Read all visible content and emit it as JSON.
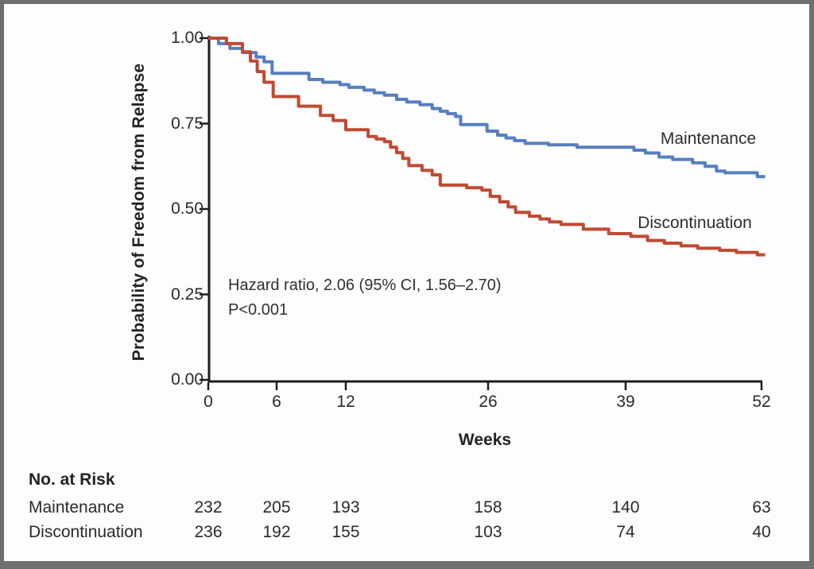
{
  "figure": {
    "frame_color": "#6f6f6f",
    "background": "#fdfdfd",
    "axis_color": "#1c1c1c",
    "text_color": "#2a2a2a"
  },
  "chart_data": {
    "type": "line",
    "subtype": "kaplan-meier-step",
    "title": "",
    "xlabel": "Weeks",
    "ylabel": "Probability of Freedom from Relapse",
    "xlim": [
      0,
      52
    ],
    "ylim": [
      0.0,
      1.0
    ],
    "grid": false,
    "legend_position": "inline-right",
    "x_ticks": [
      0,
      6,
      12,
      26,
      39,
      52
    ],
    "y_ticks": [
      "1.00",
      "0.75",
      "0.50",
      "0.25",
      "0.00"
    ],
    "y_tick_values": [
      1.0,
      0.75,
      0.5,
      0.25,
      0.0
    ],
    "annotation": {
      "line1": "Hazard ratio, 2.06 (95% CI, 1.56–2.70)",
      "line2": "P<0.001"
    },
    "series": [
      {
        "name": "Maintenance",
        "color": "#567fbe",
        "steps": [
          [
            0,
            1.0
          ],
          [
            0.9,
            0.984
          ],
          [
            1.9,
            0.97
          ],
          [
            3.0,
            0.958
          ],
          [
            4.2,
            0.945
          ],
          [
            4.9,
            0.931
          ],
          [
            5.6,
            0.897
          ],
          [
            8.8,
            0.879
          ],
          [
            10.0,
            0.871
          ],
          [
            11.5,
            0.864
          ],
          [
            12.3,
            0.856
          ],
          [
            13.8,
            0.848
          ],
          [
            14.8,
            0.84
          ],
          [
            15.8,
            0.833
          ],
          [
            17.0,
            0.821
          ],
          [
            18.0,
            0.813
          ],
          [
            19.3,
            0.805
          ],
          [
            20.5,
            0.794
          ],
          [
            21.3,
            0.786
          ],
          [
            22.0,
            0.779
          ],
          [
            22.8,
            0.771
          ],
          [
            23.3,
            0.747
          ],
          [
            25.9,
            0.728
          ],
          [
            26.9,
            0.716
          ],
          [
            27.7,
            0.708
          ],
          [
            28.5,
            0.7
          ],
          [
            29.5,
            0.692
          ],
          [
            31.7,
            0.688
          ],
          [
            34.4,
            0.681
          ],
          [
            39.8,
            0.672
          ],
          [
            40.9,
            0.664
          ],
          [
            42.2,
            0.652
          ],
          [
            43.5,
            0.645
          ],
          [
            45.4,
            0.635
          ],
          [
            46.6,
            0.625
          ],
          [
            47.7,
            0.611
          ],
          [
            48.5,
            0.606
          ],
          [
            51.6,
            0.595
          ]
        ]
      },
      {
        "name": "Discontinuation",
        "color": "#bf4a33",
        "steps": [
          [
            0,
            1.0
          ],
          [
            1.6,
            0.984
          ],
          [
            3.0,
            0.96
          ],
          [
            3.7,
            0.933
          ],
          [
            4.3,
            0.902
          ],
          [
            4.9,
            0.871
          ],
          [
            5.7,
            0.829
          ],
          [
            7.9,
            0.801
          ],
          [
            9.8,
            0.774
          ],
          [
            10.9,
            0.759
          ],
          [
            12.0,
            0.732
          ],
          [
            14.2,
            0.712
          ],
          [
            15.0,
            0.705
          ],
          [
            15.8,
            0.697
          ],
          [
            16.4,
            0.681
          ],
          [
            17.0,
            0.665
          ],
          [
            17.6,
            0.648
          ],
          [
            18.2,
            0.627
          ],
          [
            19.5,
            0.613
          ],
          [
            20.5,
            0.6
          ],
          [
            21.3,
            0.57
          ],
          [
            23.9,
            0.562
          ],
          [
            25.4,
            0.555
          ],
          [
            26.2,
            0.537
          ],
          [
            27.1,
            0.521
          ],
          [
            27.9,
            0.506
          ],
          [
            28.6,
            0.49
          ],
          [
            29.9,
            0.479
          ],
          [
            30.9,
            0.471
          ],
          [
            31.8,
            0.462
          ],
          [
            32.9,
            0.455
          ],
          [
            35.0,
            0.441
          ],
          [
            37.4,
            0.428
          ],
          [
            39.5,
            0.42
          ],
          [
            41.1,
            0.408
          ],
          [
            42.7,
            0.4
          ],
          [
            44.3,
            0.392
          ],
          [
            45.9,
            0.385
          ],
          [
            48.0,
            0.379
          ],
          [
            49.6,
            0.373
          ],
          [
            51.6,
            0.366
          ]
        ]
      }
    ]
  },
  "risk_table": {
    "title": "No. at Risk",
    "columns_weeks": [
      0,
      6,
      12,
      26,
      39,
      52
    ],
    "rows": [
      {
        "label": "Maintenance",
        "values": [
          "232",
          "205",
          "193",
          "158",
          "140",
          "63"
        ]
      },
      {
        "label": "Discontinuation",
        "values": [
          "236",
          "192",
          "155",
          "103",
          "74",
          "40"
        ]
      }
    ]
  }
}
